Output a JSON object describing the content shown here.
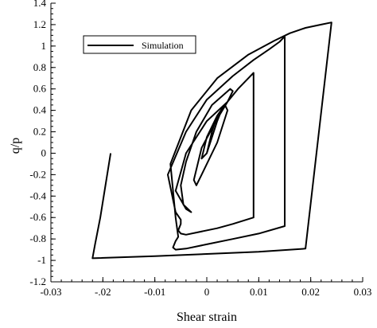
{
  "chart_data": {
    "type": "line",
    "xlabel": "Shear strain",
    "ylabel": "q/p",
    "xlim": [
      -0.03,
      0.03
    ],
    "ylim": [
      -1.2,
      1.4
    ],
    "xticks": [
      -0.03,
      -0.02,
      -0.01,
      0,
      0.01,
      0.02,
      0.03
    ],
    "xtick_labels": [
      "-0.03",
      "-.02",
      "-0.01",
      "0",
      "0.01",
      "0.02",
      "0.03"
    ],
    "yticks": [
      -1.2,
      -1,
      -0.8,
      -0.6,
      -0.4,
      -0.2,
      0,
      0.2,
      0.4,
      0.6,
      0.8,
      1,
      1.2,
      1.4
    ],
    "ytick_labels": [
      "-1.2",
      "-1",
      "-0.8",
      "-0.6",
      "-0.4",
      "-0.2",
      "0",
      "0.2",
      "0.4",
      "0.6",
      "0.8",
      "1",
      "1.2",
      "1.4"
    ],
    "grid": false,
    "legend_position": "top-left",
    "series": [
      {
        "name": "Simulation",
        "color": "#000000",
        "x": [
          -0.0185,
          -0.0195,
          -0.0205,
          -0.0215,
          -0.022,
          -0.01,
          0.0,
          0.01,
          0.019,
          0.024,
          0.022,
          0.019,
          0.016,
          0.013,
          0.008,
          0.002,
          -0.003,
          -0.007,
          -0.006,
          -0.0055,
          -0.006,
          -0.0065,
          -0.006,
          -0.004,
          0.0,
          0.005,
          0.01,
          0.015,
          0.015,
          0.014,
          0.012,
          0.009,
          0.005,
          0.0,
          -0.004,
          -0.0075,
          -0.006,
          -0.005,
          -0.005,
          -0.0055,
          -0.005,
          -0.004,
          -0.002,
          0.002,
          0.005,
          0.009,
          0.009,
          0.008,
          0.006,
          0.004,
          0.0,
          -0.004,
          -0.006,
          -0.004,
          -0.003,
          -0.0045,
          -0.005,
          -0.004,
          -0.002,
          0.001,
          0.0045,
          0.005,
          0.004,
          0.002,
          -0.001,
          -0.0025,
          -0.002,
          -0.001,
          0.002,
          0.004,
          0.0035,
          0.002,
          0.0,
          -0.001,
          0.0,
          0.001,
          0.002,
          0.003,
          0.002,
          0.0
        ],
        "y": [
          0.0,
          -0.3,
          -0.6,
          -0.85,
          -0.98,
          -0.96,
          -0.94,
          -0.92,
          -0.89,
          1.22,
          1.2,
          1.17,
          1.12,
          1.05,
          0.92,
          0.7,
          0.4,
          -0.1,
          -0.6,
          -0.78,
          -0.82,
          -0.88,
          -0.9,
          -0.89,
          -0.85,
          -0.8,
          -0.75,
          -0.68,
          1.09,
          1.04,
          0.97,
          0.87,
          0.72,
          0.5,
          0.2,
          -0.2,
          -0.55,
          -0.62,
          -0.66,
          -0.72,
          -0.75,
          -0.76,
          -0.74,
          -0.7,
          -0.66,
          -0.6,
          0.75,
          0.7,
          0.6,
          0.48,
          0.3,
          0.0,
          -0.35,
          -0.52,
          -0.55,
          -0.48,
          -0.3,
          -0.08,
          0.2,
          0.45,
          0.6,
          0.58,
          0.48,
          0.32,
          0.05,
          -0.25,
          -0.3,
          -0.2,
          0.1,
          0.4,
          0.45,
          0.35,
          0.15,
          -0.05,
          0.0,
          0.2,
          0.35,
          0.42,
          0.3,
          0.0
        ]
      }
    ]
  }
}
